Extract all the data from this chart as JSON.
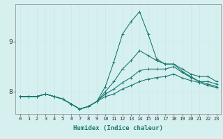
{
  "title": "",
  "xlabel": "Humidex (Indice chaleur)",
  "ylabel": "",
  "background_color": "#d6f0f0",
  "line_color": "#1a7a6e",
  "grid_color": "#c8e8e8",
  "xlim": [
    -0.5,
    23.5
  ],
  "ylim": [
    7.55,
    9.75
  ],
  "yticks": [
    8,
    9
  ],
  "xticks": [
    0,
    1,
    2,
    3,
    4,
    5,
    6,
    7,
    8,
    9,
    10,
    11,
    12,
    13,
    14,
    15,
    16,
    17,
    18,
    19,
    20,
    21,
    22,
    23
  ],
  "lines": [
    [
      7.9,
      7.9,
      7.9,
      7.95,
      7.9,
      7.85,
      7.75,
      7.65,
      7.7,
      7.8,
      8.1,
      8.6,
      9.15,
      9.4,
      9.6,
      9.15,
      8.65,
      8.55,
      8.55,
      8.45,
      8.35,
      8.3,
      8.3,
      8.2
    ],
    [
      7.9,
      7.9,
      7.9,
      7.95,
      7.9,
      7.85,
      7.75,
      7.65,
      7.7,
      7.8,
      8.0,
      8.2,
      8.45,
      8.62,
      8.82,
      8.72,
      8.62,
      8.55,
      8.55,
      8.4,
      8.3,
      8.2,
      8.2,
      8.15
    ],
    [
      7.9,
      7.9,
      7.9,
      7.95,
      7.9,
      7.85,
      7.75,
      7.65,
      7.7,
      7.8,
      7.95,
      8.05,
      8.18,
      8.28,
      8.42,
      8.45,
      8.45,
      8.45,
      8.5,
      8.38,
      8.28,
      8.2,
      8.15,
      8.1
    ],
    [
      7.9,
      7.9,
      7.9,
      7.95,
      7.9,
      7.85,
      7.75,
      7.65,
      7.7,
      7.8,
      7.9,
      7.95,
      8.05,
      8.12,
      8.2,
      8.25,
      8.28,
      8.3,
      8.35,
      8.27,
      8.22,
      8.18,
      8.12,
      8.08
    ]
  ],
  "xlabel_fontsize": 6.5,
  "xlabel_color": "#1a7a6e",
  "xtick_fontsize": 5.0,
  "ytick_fontsize": 6.5
}
